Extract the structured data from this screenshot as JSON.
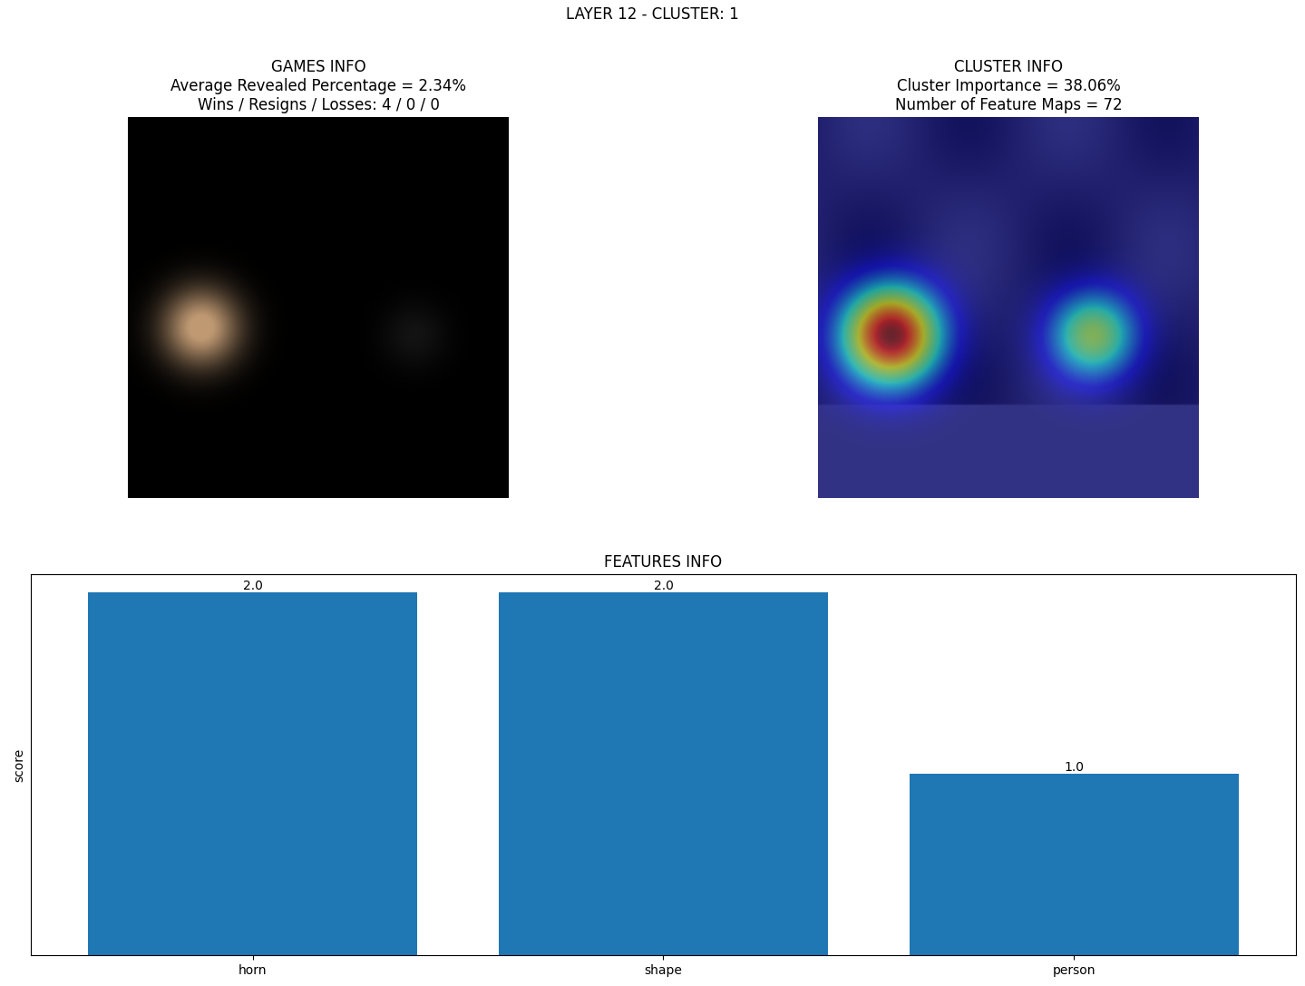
{
  "title": "LAYER 12 - CLUSTER: 1",
  "games_info": {
    "title": "GAMES INFO\nAverage Revealed Percentage = 2.34%\nWins / Resigns / Losses: 4 / 0 / 0"
  },
  "cluster_info": {
    "title": "CLUSTER INFO\nCluster Importance = 38.06%\nNumber of Feature Maps = 72"
  },
  "chart_data": {
    "type": "bar",
    "title": "FEATURES INFO",
    "y_label": "score",
    "categories": [
      "horn",
      "shape",
      "person"
    ],
    "values": [
      2.0,
      2.0,
      1.0
    ],
    "value_labels": [
      "2.0",
      "2.0",
      "1.0"
    ],
    "data_labels": true,
    "color": "#1f77b4",
    "ylim": [
      0,
      2.1
    ],
    "yticks": [],
    "tick_labels": "x"
  }
}
